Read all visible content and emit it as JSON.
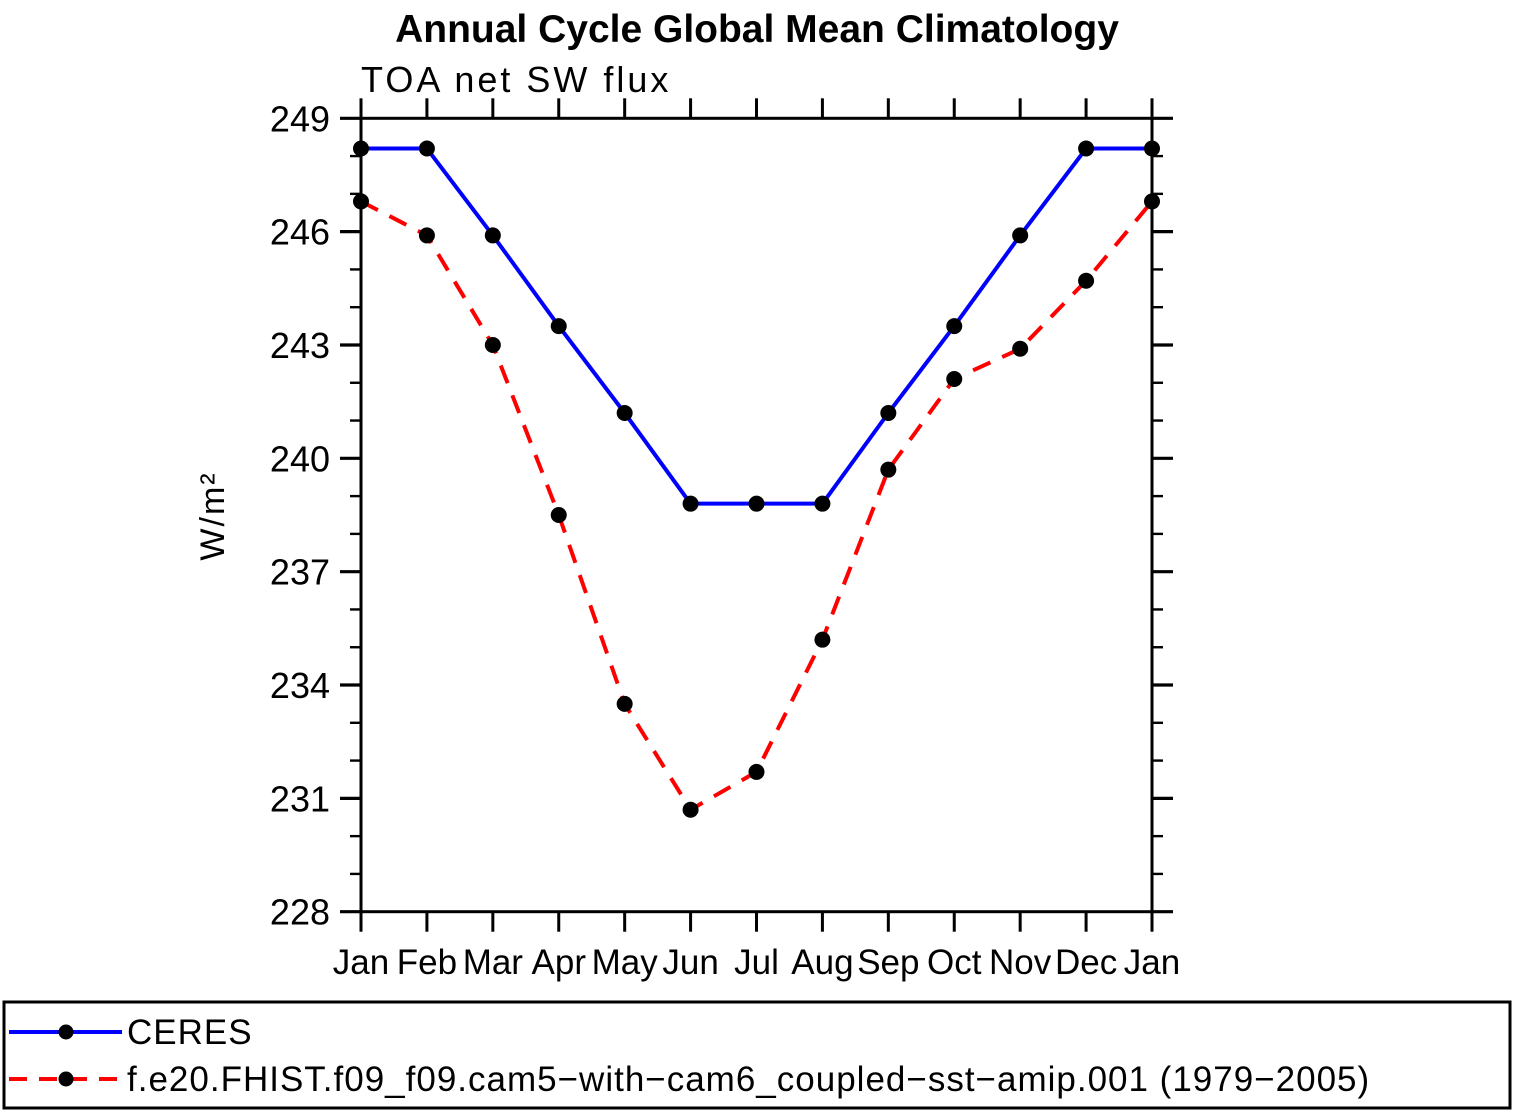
{
  "title": "Annual Cycle Global Mean Climatology",
  "chart_data": {
    "type": "line",
    "subtitle": "TOA net SW flux",
    "ylabel": "W/m²",
    "xlabel": "",
    "categories": [
      "Jan",
      "Feb",
      "Mar",
      "Apr",
      "May",
      "Jun",
      "Jul",
      "Aug",
      "Sep",
      "Oct",
      "Nov",
      "Dec",
      "Jan"
    ],
    "ylim": [
      228,
      249
    ],
    "ytick_major": 3,
    "ytick_minor": 1,
    "grid": "off",
    "legend_position": "bottom-outside",
    "axis_color": "#000000",
    "series": [
      {
        "name": "CERES",
        "color": "#0000ff",
        "style": "solid",
        "marker_color": "#000000",
        "values": [
          248.2,
          248.2,
          245.9,
          243.5,
          241.2,
          238.8,
          238.8,
          238.8,
          241.2,
          243.5,
          245.9,
          248.2,
          248.2
        ]
      },
      {
        "name": "f.e20.FHIST.f09_f09.cam5−with−cam6_coupled−sst−amip.001 (1979−2005)",
        "color": "#ff0000",
        "style": "dashed",
        "marker_color": "#000000",
        "values": [
          246.8,
          245.9,
          243.0,
          238.5,
          233.5,
          230.7,
          231.7,
          235.2,
          239.7,
          242.1,
          242.9,
          244.7,
          246.8
        ]
      }
    ]
  }
}
